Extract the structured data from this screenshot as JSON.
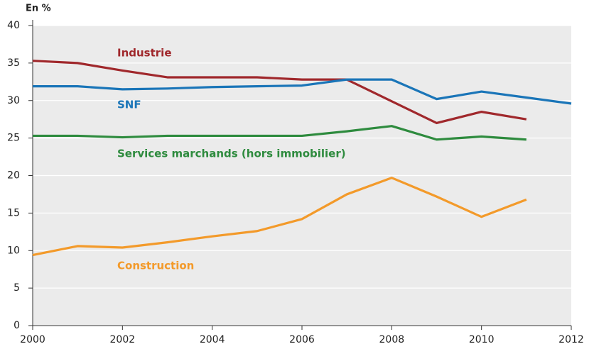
{
  "chart_data": {
    "type": "line",
    "y_label": "En %",
    "x": [
      2000,
      2001,
      2002,
      2003,
      2004,
      2005,
      2006,
      2007,
      2008,
      2009,
      2010,
      2011,
      2012
    ],
    "series": [
      {
        "name": "Industrie",
        "color": "#a0282c",
        "values": [
          35.3,
          35.0,
          34.0,
          33.1,
          33.1,
          33.1,
          32.8,
          32.8,
          29.9,
          27.0,
          28.5,
          27.5,
          null
        ]
      },
      {
        "name": "SNF",
        "color": "#1a75b8",
        "values": [
          31.9,
          31.9,
          31.5,
          31.6,
          31.8,
          31.9,
          32.0,
          32.8,
          32.8,
          30.2,
          31.2,
          30.4,
          29.6
        ]
      },
      {
        "name": "Services marchands (hors immobilier)",
        "color": "#2e8b3e",
        "values": [
          25.3,
          25.3,
          25.1,
          25.3,
          25.3,
          25.3,
          25.3,
          25.9,
          26.6,
          24.8,
          25.2,
          24.8,
          null
        ]
      },
      {
        "name": "Construction",
        "color": "#f39a2a",
        "values": [
          9.4,
          10.6,
          10.4,
          11.1,
          11.9,
          12.6,
          14.2,
          17.5,
          19.7,
          17.2,
          14.5,
          16.8,
          null
        ]
      }
    ],
    "xlim": [
      2000,
      2012
    ],
    "xticks": [
      2000,
      2002,
      2004,
      2006,
      2008,
      2010,
      2012
    ],
    "ylim": [
      0,
      40
    ],
    "yticks": [
      0,
      5,
      10,
      15,
      20,
      25,
      30,
      35,
      40
    ],
    "grid": true
  }
}
